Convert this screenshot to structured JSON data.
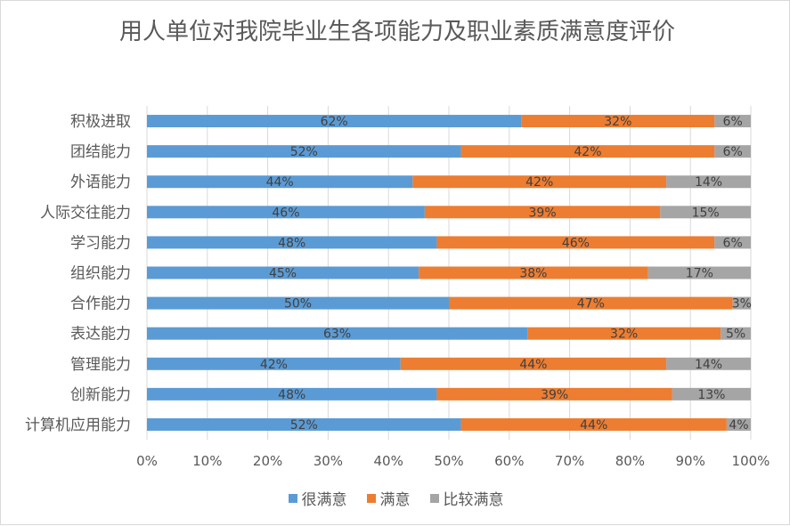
{
  "chart_data": {
    "type": "bar",
    "orientation": "horizontal",
    "stacked": "percent",
    "title": "用人单位对我院毕业生各项能力及职业素质满意度评价",
    "categories": [
      "积极进取",
      "团结能力",
      "外语能力",
      "人际交往能力",
      "学习能力",
      "组织能力",
      "合作能力",
      "表达能力",
      "管理能力",
      "创新能力",
      "计算机应用能力"
    ],
    "series": [
      {
        "name": "很满意",
        "color": "#5b9bd5",
        "values": [
          62,
          52,
          44,
          46,
          48,
          45,
          50,
          63,
          42,
          48,
          52
        ]
      },
      {
        "name": "满意",
        "color": "#ed7d31",
        "values": [
          32,
          42,
          42,
          39,
          46,
          38,
          47,
          32,
          44,
          39,
          44
        ]
      },
      {
        "name": "比较满意",
        "color": "#a5a5a5",
        "values": [
          6,
          6,
          14,
          15,
          6,
          17,
          3,
          5,
          14,
          13,
          4
        ]
      }
    ],
    "xlim": [
      0,
      100
    ],
    "xticks": [
      "0%",
      "10%",
      "20%",
      "30%",
      "40%",
      "50%",
      "60%",
      "70%",
      "80%",
      "90%",
      "100%"
    ],
    "grid": true,
    "legend_position": "bottom",
    "data_label_suffix": "%"
  }
}
